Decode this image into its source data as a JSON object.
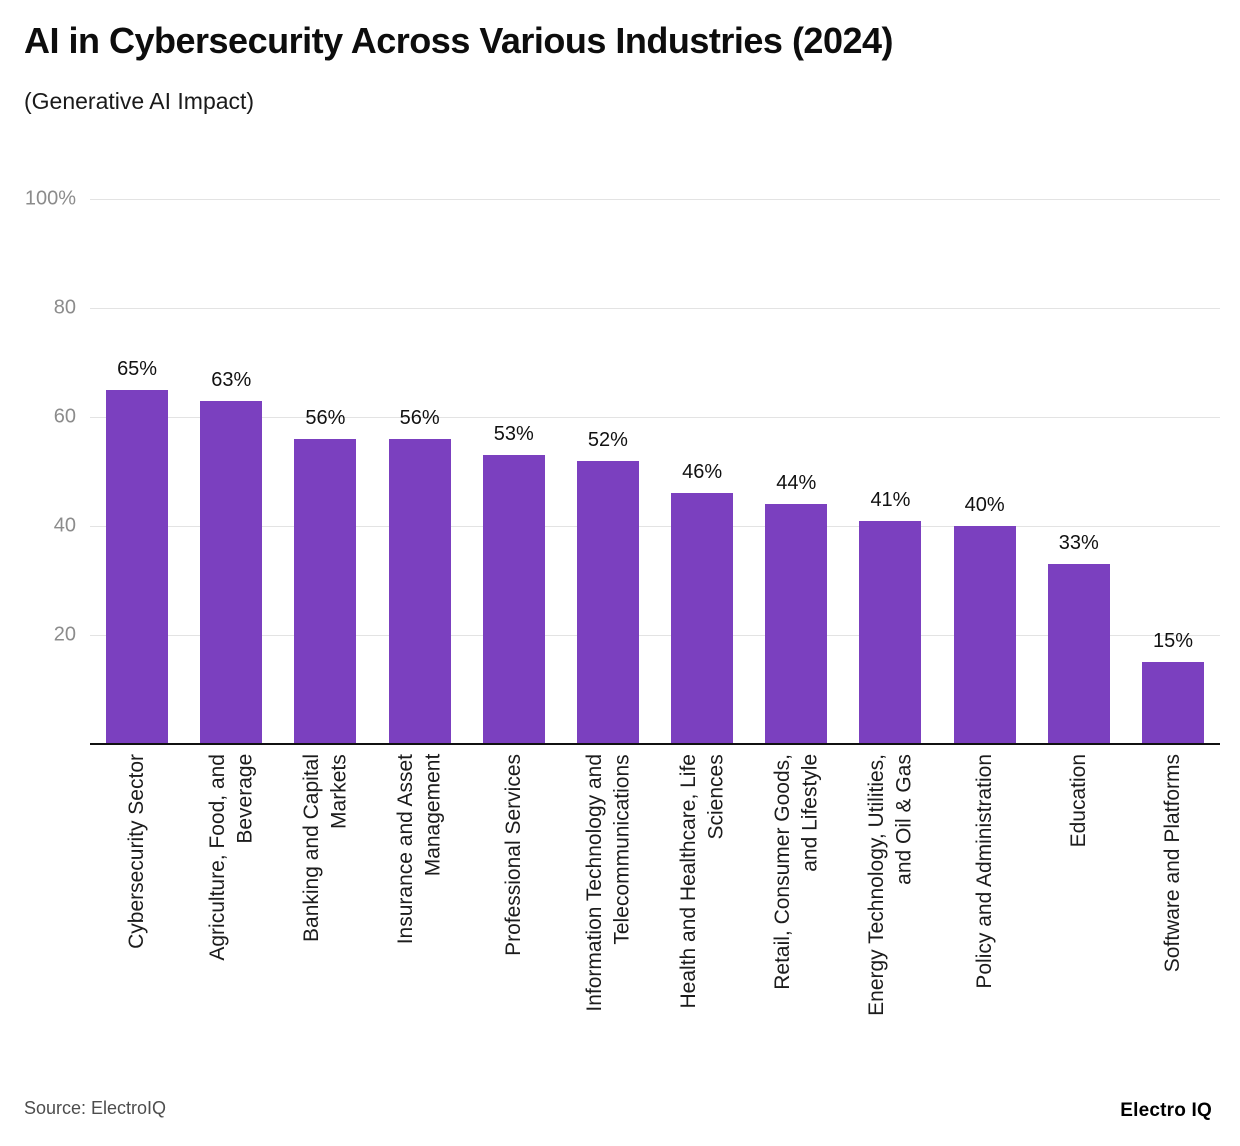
{
  "chart": {
    "title": "AI in Cybersecurity Across Various Industries (2024)",
    "subtitle": "(Generative AI Impact)"
  },
  "chart_data": {
    "type": "bar",
    "title": "AI in Cybersecurity Across Various Industries (2024)",
    "subtitle": "(Generative AI Impact)",
    "categories": [
      "Cybersecurity Sector",
      "Agriculture, Food, and\nBeverage",
      "Banking and Capital\nMarkets",
      "Insurance and Asset\nManagement",
      "Professional Services",
      "Information Technology and\nTelecommunications",
      "Health and Healthcare, Life\nSciences",
      "Retail, Consumer Goods,\nand Lifestyle",
      "Energy Technology, Utilities,\nand Oil & Gas",
      "Policy and Administration",
      "Education",
      "Software and Platforms"
    ],
    "values": [
      65,
      63,
      56,
      56,
      53,
      52,
      46,
      44,
      41,
      40,
      33,
      15
    ],
    "value_suffix": "%",
    "xlabel": "",
    "ylabel": "",
    "ylim": [
      0,
      100
    ],
    "yticks": [
      100,
      80,
      60,
      40,
      20
    ],
    "ytick_labels": [
      "100%",
      "80",
      "60",
      "40",
      "20"
    ],
    "grid": true,
    "legend": "none",
    "bar_color": "#7b40bf"
  },
  "footer": {
    "source": "Source: ElectroIQ",
    "logo": "Electro IQ"
  }
}
